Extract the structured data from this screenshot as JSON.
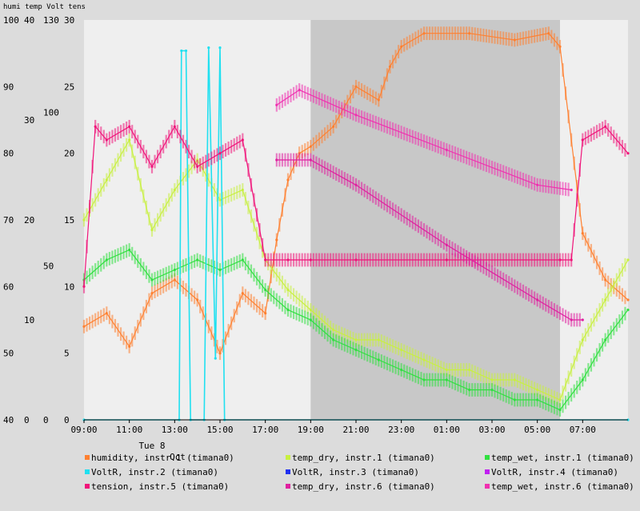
{
  "chart_data": {
    "type": "line",
    "header": "humi temp Volt tens",
    "x_start": "09:00",
    "x_end": "09:00 (next day)",
    "x_ticks": [
      "09:00",
      "11:00",
      "13:00",
      "15:00",
      "17:00",
      "19:00",
      "21:00",
      "23:00",
      "01:00",
      "03:00",
      "05:00",
      "07:00"
    ],
    "date_label_line1": "Tue 8",
    "date_label_line2": "Oct",
    "shaded_interval": [
      "19:00",
      "06:00"
    ],
    "axes": {
      "humi": {
        "min": 40,
        "max": 100,
        "ticks": [
          40,
          50,
          60,
          70,
          80,
          90,
          100
        ]
      },
      "temp": {
        "min": 0,
        "max": 40,
        "ticks": [
          0,
          10,
          20,
          30,
          40
        ]
      },
      "Volt": {
        "min": 0,
        "max": 130,
        "ticks": [
          0,
          50,
          100,
          130
        ]
      },
      "tens": {
        "min": 0,
        "max": 30,
        "ticks": [
          0,
          5,
          10,
          15,
          20,
          25,
          30
        ]
      }
    },
    "series": [
      {
        "name": "humidity, instr.1 (timana0)",
        "color": "#ff8030",
        "axis": "humi",
        "points": [
          [
            9,
            54
          ],
          [
            10,
            56
          ],
          [
            11,
            51
          ],
          [
            12,
            59
          ],
          [
            13,
            61
          ],
          [
            14,
            58
          ],
          [
            15,
            50
          ],
          [
            16,
            59
          ],
          [
            17,
            56
          ],
          [
            17.5,
            67
          ],
          [
            18,
            76
          ],
          [
            18.5,
            80
          ],
          [
            19,
            81
          ],
          [
            20,
            84
          ],
          [
            21,
            90
          ],
          [
            22,
            88
          ],
          [
            22.5,
            93
          ],
          [
            23,
            96
          ],
          [
            24,
            98
          ],
          [
            26,
            98
          ],
          [
            28,
            97
          ],
          [
            29.5,
            98
          ],
          [
            30,
            96
          ],
          [
            31,
            68
          ],
          [
            32,
            61
          ],
          [
            33,
            58
          ]
        ]
      },
      {
        "name": "temp_dry, instr.1 (timana0)",
        "color": "#c8f040",
        "axis": "temp",
        "points": [
          [
            9,
            20
          ],
          [
            10,
            24
          ],
          [
            11,
            28
          ],
          [
            12,
            19
          ],
          [
            13,
            23
          ],
          [
            14,
            26
          ],
          [
            15,
            22
          ],
          [
            16,
            23
          ],
          [
            17,
            16
          ],
          [
            18,
            13
          ],
          [
            19,
            11
          ],
          [
            20,
            9
          ],
          [
            21,
            8
          ],
          [
            22,
            8
          ],
          [
            23,
            7
          ],
          [
            24,
            6
          ],
          [
            25,
            5
          ],
          [
            26,
            5
          ],
          [
            27,
            4
          ],
          [
            28,
            4
          ],
          [
            29,
            3
          ],
          [
            30,
            2
          ],
          [
            31,
            8
          ],
          [
            32,
            12
          ],
          [
            33,
            16
          ]
        ]
      },
      {
        "name": "temp_wet, instr.1 (timana0)",
        "color": "#30e040",
        "axis": "temp",
        "points": [
          [
            9,
            14
          ],
          [
            10,
            16
          ],
          [
            11,
            17
          ],
          [
            12,
            14
          ],
          [
            13,
            15
          ],
          [
            14,
            16
          ],
          [
            15,
            15
          ],
          [
            16,
            16
          ],
          [
            17,
            13
          ],
          [
            18,
            11
          ],
          [
            19,
            10
          ],
          [
            20,
            8
          ],
          [
            21,
            7
          ],
          [
            22,
            6
          ],
          [
            23,
            5
          ],
          [
            24,
            4
          ],
          [
            25,
            4
          ],
          [
            26,
            3
          ],
          [
            27,
            3
          ],
          [
            28,
            2
          ],
          [
            29,
            2
          ],
          [
            30,
            1
          ],
          [
            31,
            4
          ],
          [
            32,
            8
          ],
          [
            33,
            11
          ]
        ]
      },
      {
        "name": "VoltR, instr.2 (timana0)",
        "color": "#20e0f0",
        "axis": "Volt",
        "points": [
          [
            9,
            0
          ],
          [
            13.2,
            0
          ],
          [
            13.3,
            120
          ],
          [
            13.5,
            120
          ],
          [
            13.7,
            0
          ],
          [
            14.3,
            0
          ],
          [
            14.5,
            121
          ],
          [
            14.8,
            20
          ],
          [
            15,
            121
          ],
          [
            15.2,
            0
          ],
          [
            33,
            0
          ]
        ]
      },
      {
        "name": "VoltR, instr.3 (timana0)",
        "color": "#2030f0",
        "axis": "Volt",
        "points": []
      },
      {
        "name": "VoltR, instr.4 (timana0)",
        "color": "#c020f0",
        "axis": "Volt",
        "points": []
      },
      {
        "name": "tension, instr.5 (timana0)",
        "color": "#f0147a",
        "axis": "tens",
        "points": [
          [
            9,
            10
          ],
          [
            9.5,
            22
          ],
          [
            10,
            21
          ],
          [
            11,
            22
          ],
          [
            12,
            19
          ],
          [
            13,
            22
          ],
          [
            14,
            19
          ],
          [
            15,
            20
          ],
          [
            16,
            21
          ],
          [
            17,
            12
          ],
          [
            18,
            12
          ],
          [
            19,
            12
          ],
          [
            21,
            12
          ],
          [
            25,
            12
          ],
          [
            30,
            12
          ],
          [
            30.5,
            12
          ],
          [
            31,
            21
          ],
          [
            32,
            22
          ],
          [
            33,
            20
          ]
        ]
      },
      {
        "name": "temp_dry, instr.6 (timana0)",
        "color": "#e020a0",
        "axis": "temp",
        "points": [
          [
            17.5,
            26
          ],
          [
            19,
            26
          ],
          [
            21,
            23.5
          ],
          [
            25,
            17.5
          ],
          [
            29,
            12
          ],
          [
            30.5,
            10
          ],
          [
            31,
            10
          ]
        ]
      },
      {
        "name": "temp_wet, instr.6 (timana0)",
        "color": "#f030b0",
        "axis": "temp",
        "points": [
          [
            17.5,
            31.5
          ],
          [
            18.5,
            33
          ],
          [
            21,
            30.5
          ],
          [
            25,
            27
          ],
          [
            29,
            23.5
          ],
          [
            30.5,
            23
          ]
        ]
      }
    ]
  }
}
